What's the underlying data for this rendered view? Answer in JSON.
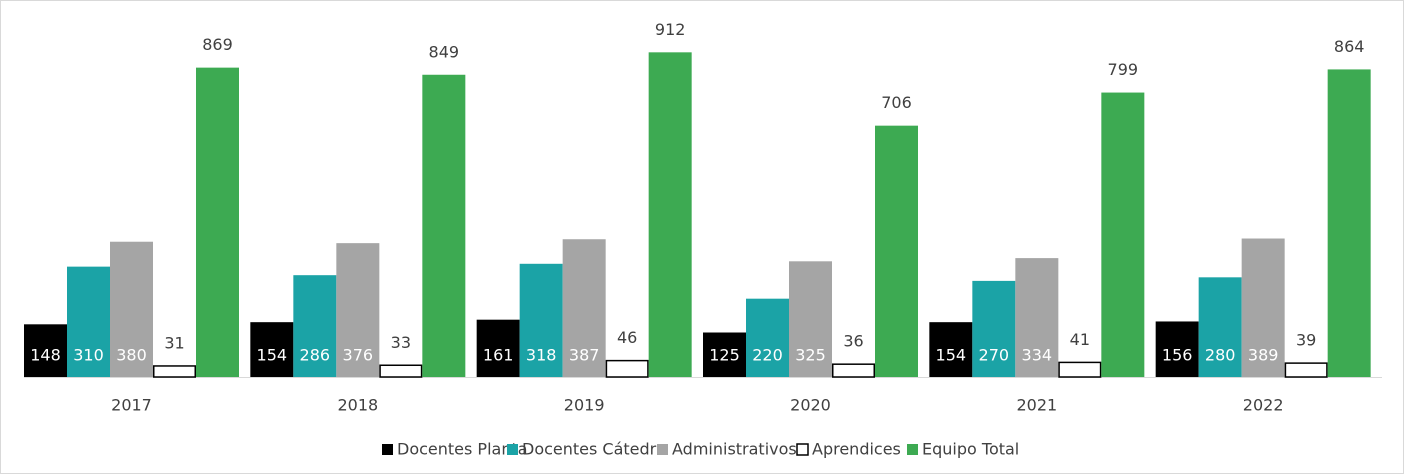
{
  "chart_data": {
    "type": "bar",
    "categories": [
      "2017",
      "2018",
      "2019",
      "2020",
      "2021",
      "2022"
    ],
    "series": [
      {
        "name": "Docentes Planta",
        "color": "#000000",
        "values": [
          148,
          154,
          161,
          125,
          154,
          156
        ]
      },
      {
        "name": "Docentes Cátedra",
        "color": "#1ba3a6",
        "values": [
          310,
          286,
          318,
          220,
          270,
          280
        ]
      },
      {
        "name": "Administrativos",
        "color": "#a5a5a5",
        "values": [
          380,
          376,
          387,
          325,
          334,
          389
        ]
      },
      {
        "name": "Aprendices",
        "color": "#ffffff",
        "values": [
          31,
          33,
          46,
          36,
          41,
          39
        ]
      },
      {
        "name": "Equipo Total",
        "color": "#3daa52",
        "values": [
          869,
          849,
          912,
          706,
          799,
          864
        ]
      }
    ],
    "ylim": [
      0,
      1000
    ],
    "grid": false,
    "legend": "bottom"
  }
}
